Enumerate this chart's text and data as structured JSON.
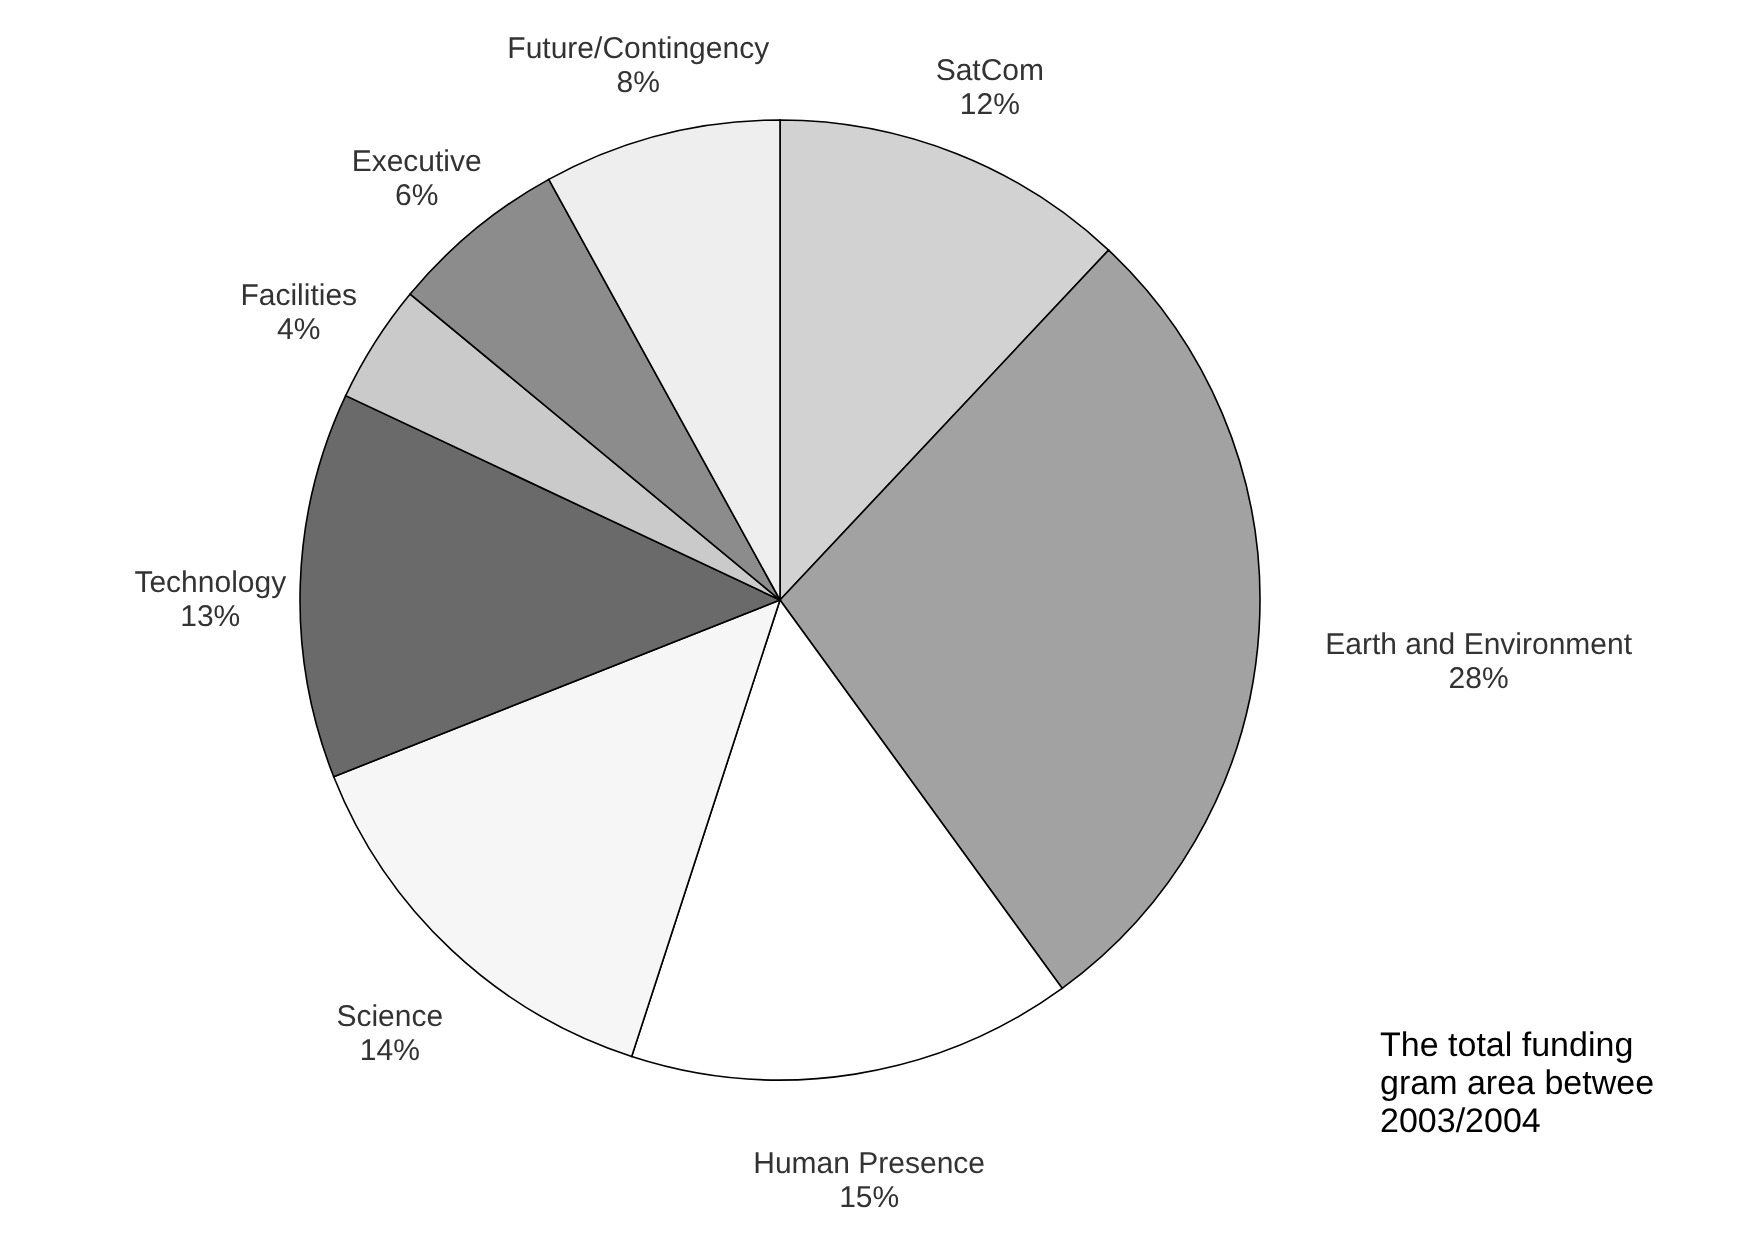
{
  "chart_data": {
    "type": "pie",
    "categories": [
      "SatCom",
      "Earth and Environment",
      "Human Presence",
      "Science",
      "Technology",
      "Facilities",
      "Executive",
      "Future/Contingency"
    ],
    "values": [
      12,
      28,
      15,
      14,
      13,
      4,
      6,
      8
    ],
    "value_labels": [
      "12%",
      "28%",
      "15%",
      "14%",
      "13%",
      "4%",
      "6%",
      "8%"
    ],
    "colors": [
      "#d2d2d2",
      "#a2a2a2",
      "#ffffff",
      "#f6f6f6",
      "#6a6a6a",
      "#cacaca",
      "#8c8c8c",
      "#eeeeee"
    ],
    "annotations": [
      "The total funding",
      "gram area betwee",
      "2003/2004"
    ]
  }
}
